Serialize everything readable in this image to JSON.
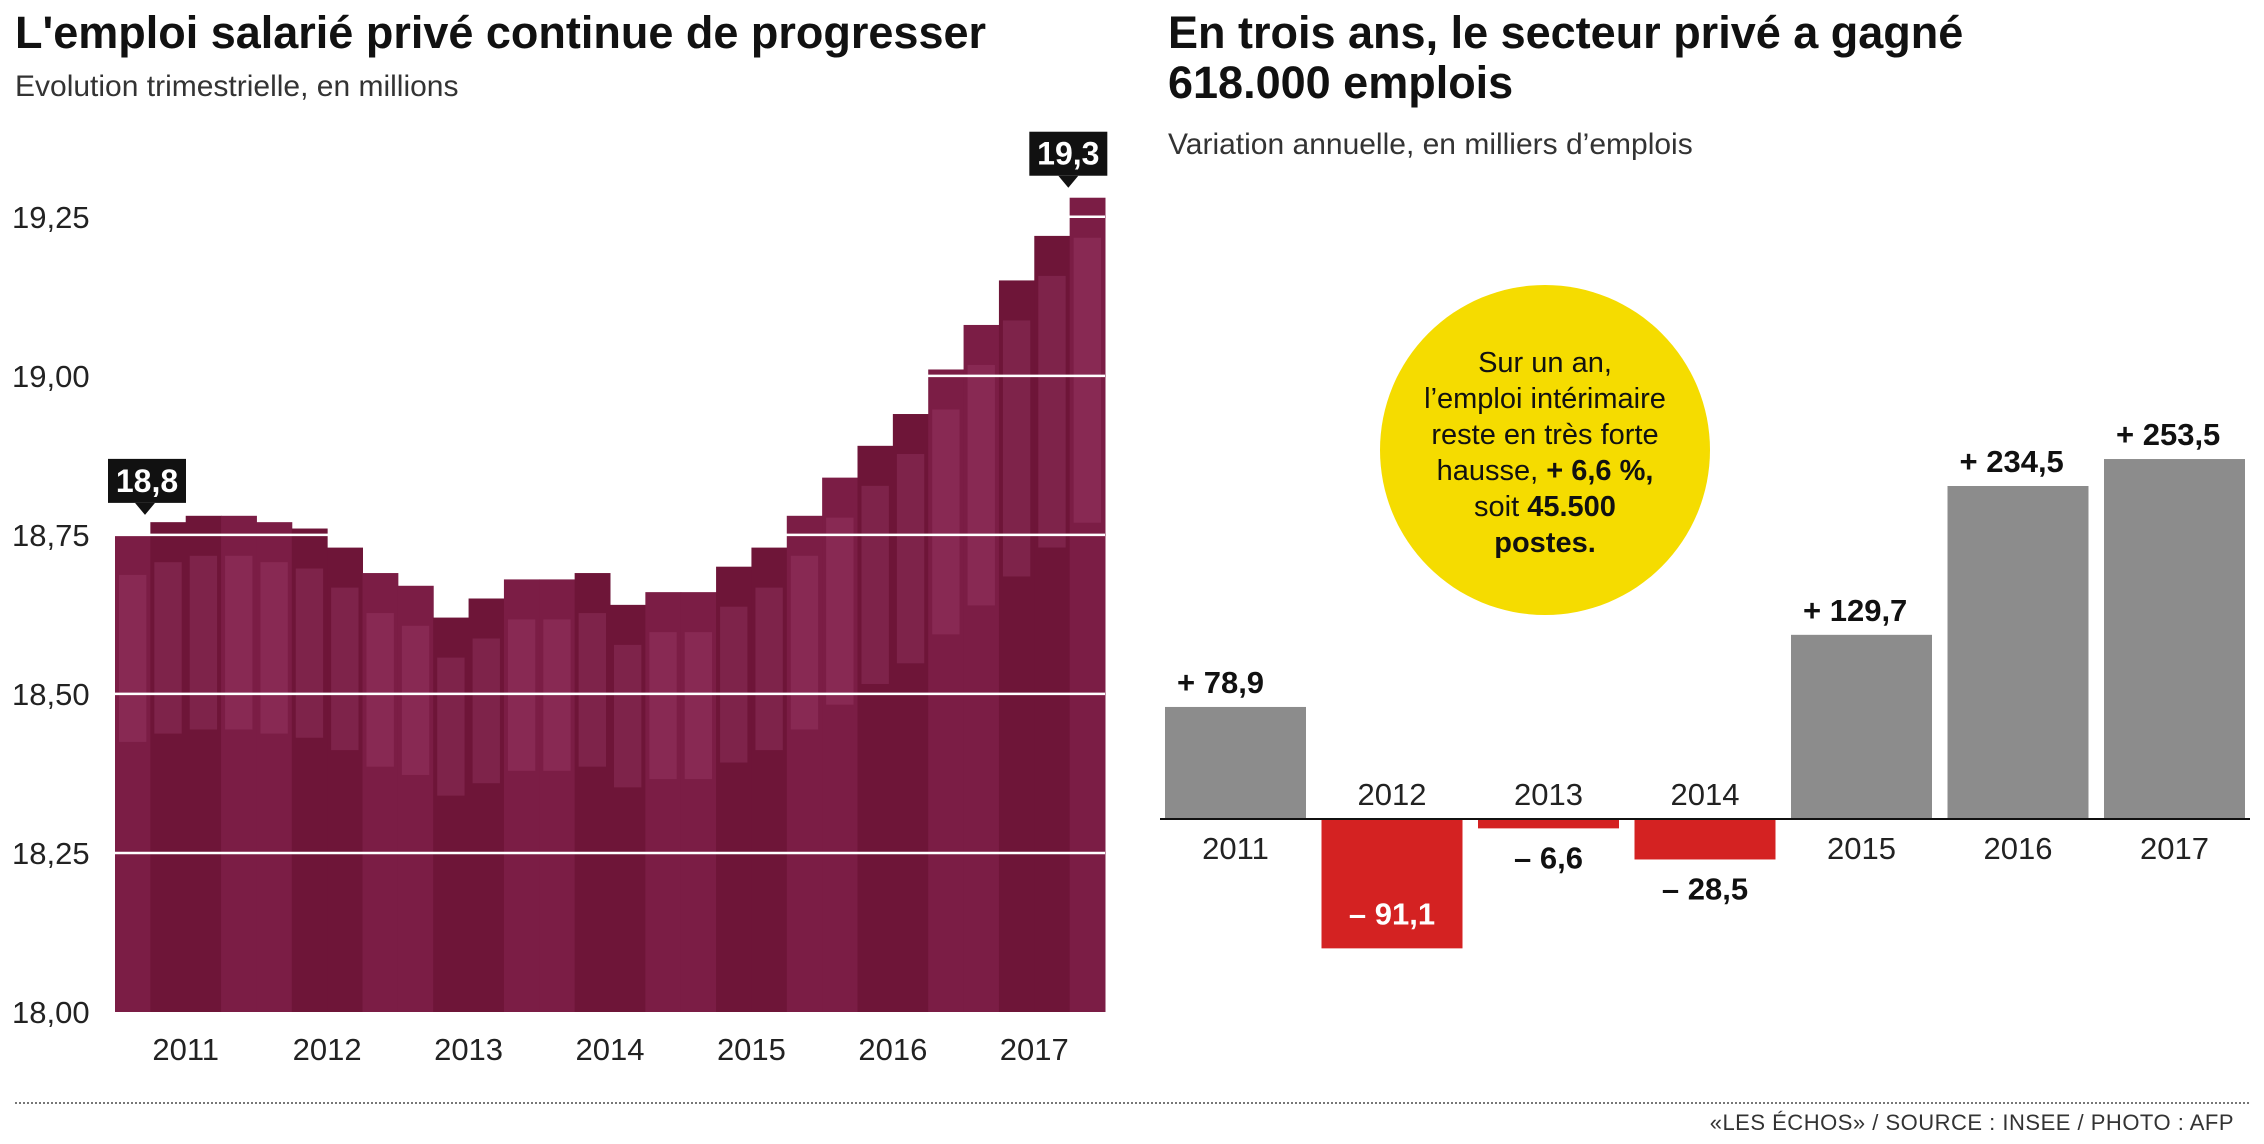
{
  "colors": {
    "area": "#6e1538",
    "area_light": "#b0507e",
    "positive": "#8c8c8c",
    "negative": "#d42222",
    "callout": "#f5dc00",
    "label_box": "#111111"
  },
  "left": {
    "title": "L'emploi salarié privé continue de progresser",
    "subtitle": "Evolution trimestrielle, en millions",
    "start_label": "18,8",
    "end_label": "19,3"
  },
  "right": {
    "title_line1": "En trois ans, le secteur privé a gagné",
    "title_line2": "618.000 emplois",
    "subtitle": "Variation annuelle, en milliers d’emplois",
    "callout": {
      "line1": "Sur un an,",
      "line2": "l’emploi intérimaire",
      "line3": "reste en très forte",
      "line4_pre": "hausse, ",
      "line4_bold": "+ 6,6 %,",
      "line5_pre": "soit ",
      "line5_bold": "45.500",
      "line6": "postes."
    }
  },
  "source": "«LES ÉCHOS» / SOURCE : INSEE / PHOTO : AFP",
  "chart_data": [
    {
      "type": "area",
      "title": "L'emploi salarié privé continue de progresser",
      "subtitle": "Evolution trimestrielle, en millions",
      "ylim": [
        18.0,
        19.3
      ],
      "yticks": [
        18.0,
        18.25,
        18.5,
        18.75,
        19.0,
        19.25
      ],
      "ytick_labels": [
        "18,00",
        "18,25",
        "18,50",
        "18,75",
        "19,00",
        "19,25"
      ],
      "x_labels": [
        "2011",
        "2012",
        "2013",
        "2014",
        "2015",
        "2016",
        "2017"
      ],
      "x": [
        "2011-T1",
        "2011-T2",
        "2011-T3",
        "2011-T4",
        "2012-T1",
        "2012-T2",
        "2012-T3",
        "2012-T4",
        "2013-T1",
        "2013-T2",
        "2013-T3",
        "2013-T4",
        "2014-T1",
        "2014-T2",
        "2014-T3",
        "2014-T4",
        "2015-T1",
        "2015-T2",
        "2015-T3",
        "2015-T4",
        "2016-T1",
        "2016-T2",
        "2016-T3",
        "2016-T4",
        "2017-T1",
        "2017-T2",
        "2017-T3",
        "2017-T4"
      ],
      "values": [
        18.75,
        18.77,
        18.78,
        18.78,
        18.77,
        18.76,
        18.73,
        18.69,
        18.67,
        18.62,
        18.65,
        18.68,
        18.68,
        18.69,
        18.64,
        18.66,
        18.66,
        18.7,
        18.73,
        18.78,
        18.84,
        18.89,
        18.94,
        19.01,
        19.08,
        19.15,
        19.22,
        19.28
      ],
      "annotations": [
        {
          "x": "2011-T1",
          "text": "18,8"
        },
        {
          "x": "2017-T4",
          "text": "19,3"
        }
      ]
    },
    {
      "type": "bar",
      "title": "En trois ans, le secteur privé a gagné 618.000 emplois",
      "subtitle": "Variation annuelle, en milliers d’emplois",
      "categories": [
        "2011",
        "2012",
        "2013",
        "2014",
        "2015",
        "2016",
        "2017"
      ],
      "values": [
        78.9,
        -91.1,
        -6.6,
        -28.5,
        129.7,
        234.5,
        253.5
      ],
      "value_labels": [
        "+ 78,9",
        "– 91,1",
        "– 6,6",
        "– 28,5",
        "+ 129,7",
        "+ 234,5",
        "+ 253,5"
      ]
    }
  ]
}
